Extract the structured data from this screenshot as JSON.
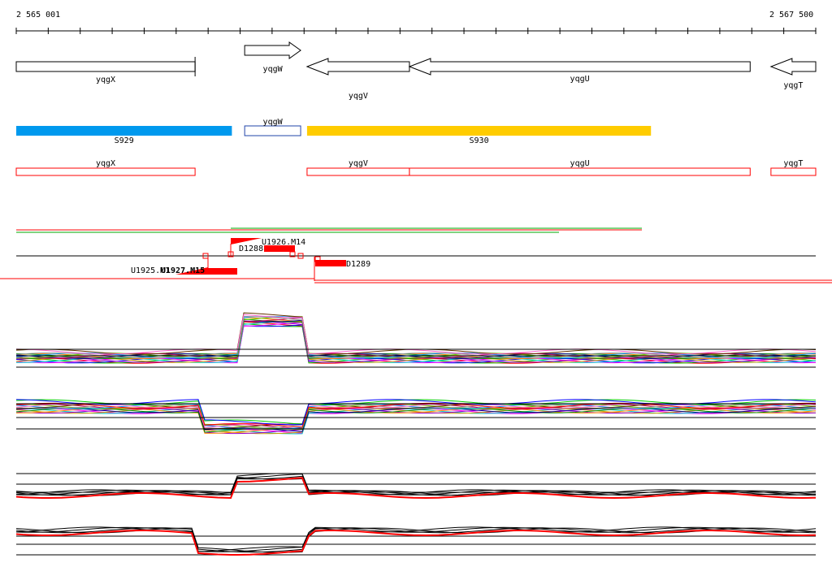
{
  "axis": {
    "start_label": "2 565 001",
    "end_label": "2 567 500",
    "start": 2565001,
    "end": 2567500
  },
  "genes": [
    {
      "name": "yqgX",
      "strand": "none",
      "start": 2565001,
      "end": 2565560
    },
    {
      "name": "yqgW",
      "strand": "+",
      "start": 2565715,
      "end": 2565890
    },
    {
      "name": "yqgV",
      "strand": "-",
      "start": 2565910,
      "end": 2566230
    },
    {
      "name": "yqgU",
      "strand": "-",
      "start": 2566230,
      "end": 2567295
    },
    {
      "name": "yqgT",
      "strand": "-",
      "start": 2567360,
      "end": 2567500
    }
  ],
  "segments": [
    {
      "name": "S929",
      "color": "#0099ee",
      "start": 2565001,
      "end": 2565675
    },
    {
      "name": "yqgW",
      "color": "#ffffff",
      "border": "#2244aa",
      "start": 2565715,
      "end": 2565890
    },
    {
      "name": "S930",
      "color": "#ffcc00",
      "start": 2565910,
      "end": 2566985
    }
  ],
  "red_boxes": [
    {
      "name": "yqgX",
      "start": 2565001,
      "end": 2565560
    },
    {
      "name": "yqgV",
      "start": 2565910,
      "end": 2566230
    },
    {
      "name": "yqgU",
      "start": 2566230,
      "end": 2567295
    },
    {
      "name": "yqgT",
      "start": 2567360,
      "end": 2567500
    }
  ],
  "features": {
    "u1926": "U1926.M14",
    "d1288": "D1288",
    "d1289": "D1289",
    "u1925": "U1925.M1",
    "u1927": "U1927.M15"
  },
  "colors": {
    "accent_red": "#ff0000",
    "green": "#00aa00",
    "black": "#000000"
  }
}
